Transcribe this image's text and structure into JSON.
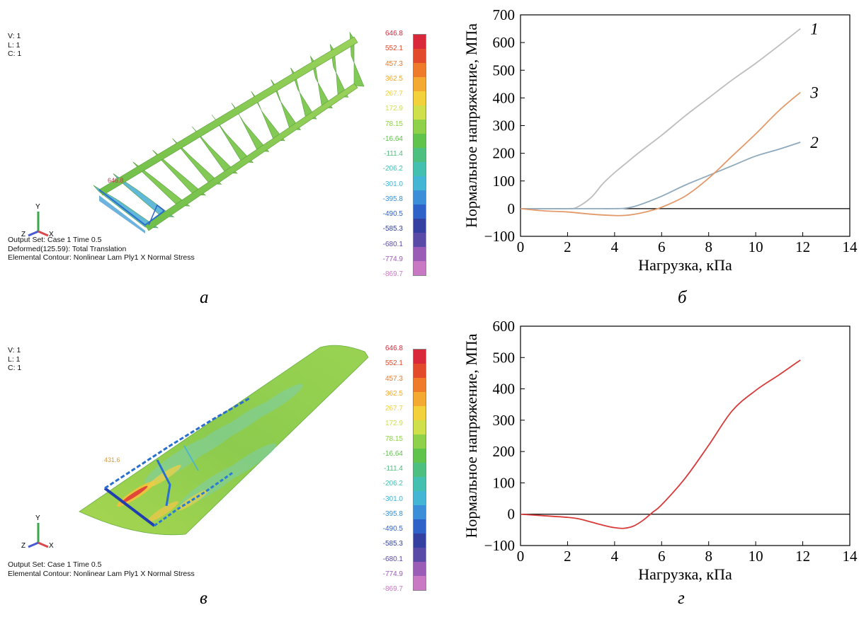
{
  "panel_a": {
    "vlc": [
      "V: 1",
      "L: 1",
      "C: 1"
    ],
    "info": [
      "Output Set: Case 1 Time 0.5",
      "Deformed(125.59): Total Translation",
      "Elemental Contour: Nonlinear Lam Ply1 X Normal Stress"
    ],
    "max_marker": "646.8",
    "caption": "а"
  },
  "panel_v": {
    "vlc": [
      "V: 1",
      "L: 1",
      "C: 1"
    ],
    "info": [
      "Output Set: Case 1 Time 0.5",
      "Elemental Contour: Nonlinear Lam Ply1 X Normal Stress"
    ],
    "max_marker": "431.6",
    "caption": "в"
  },
  "axes_triad": {
    "x": "X",
    "y": "Y",
    "z": "Z"
  },
  "colorbar": {
    "labels": [
      "646.8",
      "552.1",
      "457.3",
      "362.5",
      "267.7",
      "172.9",
      "78.15",
      "-16.64",
      "-111.4",
      "-206.2",
      "-301.0",
      "-395.8",
      "-490.5",
      "-585.3",
      "-680.1",
      "-774.9",
      "-869.7"
    ],
    "colors": [
      "#d8283a",
      "#e34a2c",
      "#ee7a2a",
      "#f4a930",
      "#f2d13a",
      "#cfe04a",
      "#8fd24a",
      "#60c44c",
      "#4dbf7e",
      "#44c0b0",
      "#42b6d4",
      "#3a8fd8",
      "#2f62c8",
      "#33409f",
      "#5a4aa8",
      "#9a5cb6",
      "#c978c4"
    ]
  },
  "chart_data": [
    {
      "id": "б",
      "type": "line",
      "xlabel": "Нагрузка, кПа",
      "ylabel": "Нормальное напряжение, МПа",
      "xlim": [
        0,
        14
      ],
      "ylim": [
        -100,
        700
      ],
      "xticks": [
        0,
        2,
        4,
        6,
        8,
        10,
        12,
        14
      ],
      "yticks": [
        -100,
        0,
        100,
        200,
        300,
        400,
        500,
        600,
        700
      ],
      "series": [
        {
          "name": "1",
          "color": "#bdbdbd",
          "x": [
            0,
            1,
            2,
            2.4,
            3,
            3.5,
            4,
            4.5,
            5,
            6,
            7,
            8,
            9,
            10,
            11,
            11.9
          ],
          "y": [
            0,
            0,
            0,
            5,
            40,
            90,
            130,
            165,
            200,
            265,
            335,
            400,
            465,
            525,
            590,
            650
          ]
        },
        {
          "name": "2",
          "color": "#8fa9bd",
          "x": [
            0,
            1,
            2,
            3,
            4,
            4.5,
            5,
            6,
            7,
            8,
            9,
            10,
            11,
            11.9
          ],
          "y": [
            0,
            0,
            0,
            0,
            0,
            2,
            12,
            45,
            85,
            120,
            155,
            190,
            215,
            240
          ]
        },
        {
          "name": "3",
          "color": "#e39a6a",
          "x": [
            0,
            1,
            2,
            3,
            4,
            4.5,
            5,
            5.5,
            6,
            7,
            8,
            9,
            10,
            11,
            11.9
          ],
          "y": [
            0,
            -8,
            -12,
            -20,
            -25,
            -24,
            -18,
            -8,
            5,
            45,
            110,
            190,
            270,
            355,
            420
          ]
        }
      ]
    },
    {
      "id": "г",
      "type": "line",
      "xlabel": "Нагрузка, кПа",
      "ylabel": "Нормальное напряжение, МПа",
      "xlim": [
        0,
        14
      ],
      "ylim": [
        -100,
        600
      ],
      "xticks": [
        0,
        2,
        4,
        6,
        8,
        10,
        12,
        14
      ],
      "yticks": [
        -100,
        0,
        100,
        200,
        300,
        400,
        500,
        600
      ],
      "series": [
        {
          "color": "#d93a3a",
          "x": [
            0,
            1,
            2,
            2.5,
            3,
            3.5,
            4,
            4.4,
            4.8,
            5.2,
            5.6,
            6,
            7,
            8,
            9,
            10,
            11,
            11.9
          ],
          "y": [
            0,
            -5,
            -10,
            -15,
            -25,
            -35,
            -43,
            -45,
            -38,
            -20,
            5,
            30,
            115,
            220,
            330,
            395,
            445,
            492
          ]
        }
      ]
    }
  ],
  "captions": {
    "b": "б",
    "g": "г"
  }
}
